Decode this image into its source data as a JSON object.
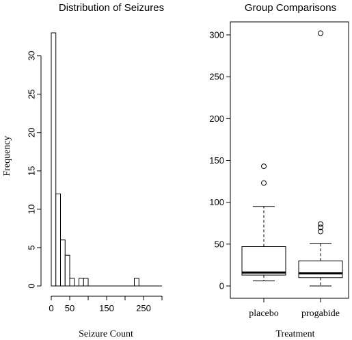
{
  "chart_data": [
    {
      "type": "bar",
      "subtype": "histogram",
      "title": "Distribution of Seizures",
      "xlabel": "Seizure Count",
      "ylabel": "Frequency",
      "bin_width": 12.5,
      "bins": [
        {
          "x0": 0,
          "x1": 12.5,
          "count": 33
        },
        {
          "x0": 12.5,
          "x1": 25,
          "count": 12
        },
        {
          "x0": 25,
          "x1": 37.5,
          "count": 6
        },
        {
          "x0": 37.5,
          "x1": 50,
          "count": 4
        },
        {
          "x0": 50,
          "x1": 62.5,
          "count": 1
        },
        {
          "x0": 62.5,
          "x1": 75,
          "count": 0
        },
        {
          "x0": 75,
          "x1": 87.5,
          "count": 1
        },
        {
          "x0": 87.5,
          "x1": 100,
          "count": 1
        },
        {
          "x0": 100,
          "x1": 112.5,
          "count": 0
        },
        {
          "x0": 112.5,
          "x1": 125,
          "count": 0
        },
        {
          "x0": 125,
          "x1": 137.5,
          "count": 0
        },
        {
          "x0": 137.5,
          "x1": 150,
          "count": 0
        },
        {
          "x0": 150,
          "x1": 162.5,
          "count": 0
        },
        {
          "x0": 162.5,
          "x1": 175,
          "count": 0
        },
        {
          "x0": 175,
          "x1": 187.5,
          "count": 0
        },
        {
          "x0": 187.5,
          "x1": 200,
          "count": 0
        },
        {
          "x0": 200,
          "x1": 212.5,
          "count": 0
        },
        {
          "x0": 212.5,
          "x1": 225,
          "count": 0
        },
        {
          "x0": 225,
          "x1": 237.5,
          "count": 1
        }
      ],
      "xlim": [
        0,
        300
      ],
      "ylim": [
        0,
        33
      ],
      "x_ticks": [
        0,
        50,
        150,
        250
      ],
      "x_tick_labels": [
        "0",
        "50",
        "150",
        "250"
      ],
      "y_ticks": [
        0,
        5,
        10,
        15,
        20,
        25,
        30
      ],
      "y_tick_labels": [
        "0",
        "5",
        "10",
        "15",
        "20",
        "25",
        "30"
      ],
      "grid": false
    },
    {
      "type": "box",
      "title": "Group Comparisons",
      "xlabel": "Treatment",
      "ylabel": "",
      "categories": [
        "placebo",
        "progabide"
      ],
      "boxes": [
        {
          "name": "placebo",
          "min": 6,
          "q1": 13,
          "median": 16,
          "q3": 47,
          "max": 95,
          "outliers": [
            123,
            143
          ]
        },
        {
          "name": "progabide",
          "min": 0,
          "q1": 10,
          "median": 15,
          "q3": 30,
          "max": 51,
          "outliers": [
            65,
            70,
            74,
            302
          ]
        }
      ],
      "ylim": [
        0,
        310
      ],
      "y_ticks": [
        0,
        50,
        100,
        150,
        200,
        250,
        300
      ],
      "y_tick_labels": [
        "0",
        "50",
        "100",
        "150",
        "200",
        "250",
        "300"
      ],
      "grid": false
    }
  ]
}
